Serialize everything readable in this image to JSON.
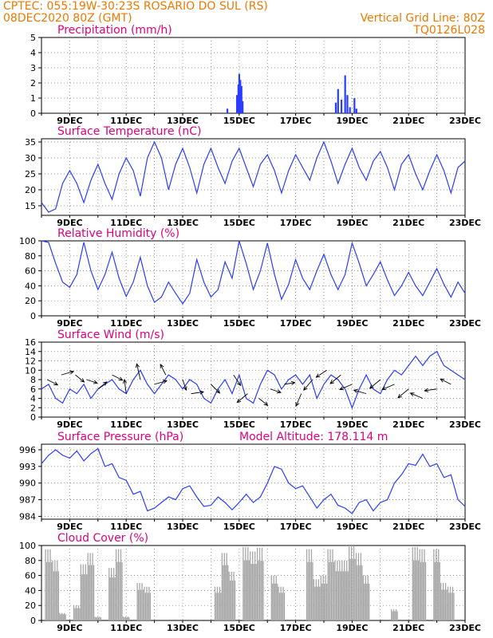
{
  "header": {
    "left_line1": "CPTEC:   055:19W-30:23S   ROSARIO DO SUL (RS)",
    "left_line2": "08DEC2020 80Z (GMT)",
    "right_line1": "Vertical Grid Line: 80Z",
    "right_line2": "TQ0126L028"
  },
  "x_axis": {
    "ticks": [
      "9DEC",
      "11DEC",
      "13DEC",
      "15DEC",
      "17DEC",
      "19DEC",
      "21DEC",
      "23DEC"
    ],
    "tick_days": [
      9,
      11,
      13,
      15,
      17,
      19,
      21,
      23
    ],
    "range_days": [
      8,
      23
    ]
  },
  "colors": {
    "line": "#2a3cff",
    "bar": "#a8a8a8",
    "title": "#e0007a",
    "header": "#f07800"
  },
  "chart_data": [
    {
      "type": "bar",
      "title": "Precipitation (mm/h)",
      "ylim": [
        0,
        5
      ],
      "yticks": [
        0,
        1,
        2,
        3,
        4,
        5
      ],
      "grid": true,
      "points": [
        [
          14.58,
          0.3
        ],
        [
          14.92,
          1.2
        ],
        [
          14.97,
          1.9
        ],
        [
          15.0,
          2.6
        ],
        [
          15.04,
          2.2
        ],
        [
          15.08,
          1.8
        ],
        [
          15.12,
          0.8
        ],
        [
          18.42,
          0.7
        ],
        [
          18.5,
          1.6
        ],
        [
          18.62,
          0.9
        ],
        [
          18.75,
          2.5
        ],
        [
          18.83,
          1.2
        ],
        [
          18.92,
          0.4
        ],
        [
          19.08,
          1.0
        ],
        [
          19.15,
          0.3
        ]
      ]
    },
    {
      "type": "line",
      "title": "Surface Temperature (nC)",
      "ylim": [
        12,
        36
      ],
      "yticks": [
        15,
        20,
        25,
        30,
        35
      ],
      "grid": true,
      "x": [
        8.0,
        8.25,
        8.5,
        8.75,
        9.0,
        9.25,
        9.5,
        9.75,
        10.0,
        10.25,
        10.5,
        10.75,
        11.0,
        11.25,
        11.5,
        11.75,
        12.0,
        12.25,
        12.5,
        12.75,
        13.0,
        13.25,
        13.5,
        13.75,
        14.0,
        14.25,
        14.5,
        14.75,
        15.0,
        15.25,
        15.5,
        15.75,
        16.0,
        16.25,
        16.5,
        16.75,
        17.0,
        17.25,
        17.5,
        17.75,
        18.0,
        18.25,
        18.5,
        18.75,
        19.0,
        19.25,
        19.5,
        19.75,
        20.0,
        20.25,
        20.5,
        20.75,
        21.0,
        21.25,
        21.5,
        21.75,
        22.0,
        22.25,
        22.5,
        22.75,
        23.0
      ],
      "y": [
        16,
        13,
        14,
        22,
        26,
        22,
        16,
        23,
        28,
        22,
        17,
        25,
        30,
        26,
        18,
        30,
        35,
        30,
        20,
        28,
        33,
        27,
        19,
        28,
        33,
        27,
        22,
        29,
        33,
        27,
        21,
        28,
        31,
        26,
        19,
        26,
        31,
        27,
        23,
        30,
        35,
        29,
        22,
        28,
        33,
        27,
        23,
        29,
        32,
        27,
        20,
        28,
        31,
        25,
        20,
        26,
        31,
        26,
        19,
        27,
        29
      ]
    },
    {
      "type": "line",
      "title": "Relative Humidity (%)",
      "ylim": [
        0,
        100
      ],
      "yticks": [
        0,
        20,
        40,
        60,
        80,
        100
      ],
      "grid": true,
      "x": [
        8.0,
        8.25,
        8.5,
        8.75,
        9.0,
        9.25,
        9.5,
        9.75,
        10.0,
        10.25,
        10.5,
        10.75,
        11.0,
        11.25,
        11.5,
        11.75,
        12.0,
        12.25,
        12.5,
        12.75,
        13.0,
        13.25,
        13.5,
        13.75,
        14.0,
        14.25,
        14.5,
        14.75,
        15.0,
        15.25,
        15.5,
        15.75,
        16.0,
        16.25,
        16.5,
        16.75,
        17.0,
        17.25,
        17.5,
        17.75,
        18.0,
        18.25,
        18.5,
        18.75,
        19.0,
        19.25,
        19.5,
        19.75,
        20.0,
        20.25,
        20.5,
        20.75,
        21.0,
        21.25,
        21.5,
        21.75,
        22.0,
        22.25,
        22.5,
        22.75,
        23.0
      ],
      "y": [
        100,
        98,
        70,
        45,
        38,
        55,
        98,
        60,
        35,
        55,
        85,
        50,
        26,
        45,
        78,
        40,
        18,
        25,
        45,
        30,
        16,
        30,
        75,
        45,
        25,
        35,
        72,
        50,
        100,
        70,
        35,
        60,
        97,
        55,
        22,
        42,
        75,
        50,
        35,
        60,
        82,
        55,
        35,
        55,
        97,
        70,
        40,
        55,
        72,
        48,
        27,
        40,
        58,
        40,
        27,
        45,
        63,
        42,
        25,
        45,
        30
      ]
    },
    {
      "type": "line",
      "title": "Surface Wind (m/s)",
      "ylim": [
        0,
        16
      ],
      "yticks": [
        0,
        2,
        4,
        6,
        8,
        10,
        12,
        14,
        16
      ],
      "grid": true,
      "x": [
        8.0,
        8.25,
        8.5,
        8.75,
        9.0,
        9.25,
        9.5,
        9.75,
        10.0,
        10.25,
        10.5,
        10.75,
        11.0,
        11.25,
        11.5,
        11.75,
        12.0,
        12.25,
        12.5,
        12.75,
        13.0,
        13.25,
        13.5,
        13.75,
        14.0,
        14.25,
        14.5,
        14.75,
        15.0,
        15.25,
        15.5,
        15.75,
        16.0,
        16.25,
        16.5,
        16.75,
        17.0,
        17.25,
        17.5,
        17.75,
        18.0,
        18.25,
        18.5,
        18.75,
        19.0,
        19.25,
        19.5,
        19.75,
        20.0,
        20.25,
        20.5,
        20.75,
        21.0,
        21.25,
        21.5,
        21.75,
        22.0,
        22.25,
        22.5,
        22.75,
        23.0
      ],
      "y": [
        6,
        7,
        4,
        3,
        6,
        5,
        7,
        4,
        6,
        7,
        8,
        6,
        5,
        8,
        10,
        7,
        5,
        7,
        9,
        8,
        6,
        8,
        7,
        4,
        3,
        6,
        8,
        5,
        9,
        4,
        3,
        7,
        10,
        9,
        6,
        8,
        9,
        7,
        9,
        4,
        7,
        9,
        8,
        6,
        2,
        6,
        9,
        6,
        5,
        8,
        10,
        9,
        11,
        13,
        11,
        13,
        14,
        11,
        10,
        9,
        8
      ],
      "arrows": [
        [
          8.2,
          8,
          0.6,
          -0.3
        ],
        [
          8.7,
          9,
          0.7,
          0.2
        ],
        [
          9.2,
          9,
          0.5,
          -0.4
        ],
        [
          9.6,
          8,
          0.6,
          -0.2
        ],
        [
          10.0,
          6,
          0.5,
          0.4
        ],
        [
          10.5,
          9,
          0.6,
          -0.3
        ],
        [
          11.0,
          5,
          -0.1,
          0.8
        ],
        [
          11.5,
          8,
          -0.2,
          0.9
        ],
        [
          12.0,
          7,
          0.7,
          0.2
        ],
        [
          12.4,
          9,
          -0.3,
          0.6
        ],
        [
          13.0,
          8,
          0.2,
          -0.6
        ],
        [
          13.3,
          5,
          0.7,
          0.1
        ],
        [
          14.0,
          7,
          0.5,
          -0.5
        ],
        [
          14.8,
          9,
          0.4,
          -0.6
        ],
        [
          15.3,
          5,
          -0.6,
          -0.5
        ],
        [
          15.7,
          4,
          0.5,
          -0.4
        ],
        [
          16.1,
          6,
          0.6,
          -0.2
        ],
        [
          16.6,
          7,
          0.6,
          0.1
        ],
        [
          17.2,
          5,
          -0.3,
          -0.7
        ],
        [
          17.6,
          8,
          -0.5,
          -0.6
        ],
        [
          18.1,
          10,
          -0.6,
          -0.4
        ],
        [
          18.6,
          9,
          -0.6,
          -0.5
        ],
        [
          19.0,
          7,
          -0.7,
          -0.3
        ],
        [
          19.5,
          5,
          -0.7,
          0.2
        ],
        [
          20.0,
          8,
          -0.6,
          -0.5
        ],
        [
          20.5,
          7,
          -0.7,
          -0.3
        ],
        [
          21.0,
          6,
          -0.6,
          -0.5
        ],
        [
          21.5,
          4,
          -0.7,
          0.3
        ],
        [
          22.0,
          6,
          -0.7,
          -0.1
        ],
        [
          22.5,
          7,
          -0.6,
          0.3
        ]
      ]
    },
    {
      "type": "line",
      "title": "Surface Pressure (hPa)",
      "annotation": "Model Altitude: 178.114 m",
      "ylim": [
        983.5,
        997
      ],
      "yticks": [
        984,
        987,
        990,
        993,
        996
      ],
      "ytick_labels": [
        "984",
        "987",
        "990",
        "993",
        "996"
      ],
      "grid": true,
      "x": [
        8.0,
        8.25,
        8.5,
        8.75,
        9.0,
        9.25,
        9.5,
        9.75,
        10.0,
        10.25,
        10.5,
        10.75,
        11.0,
        11.25,
        11.5,
        11.75,
        12.0,
        12.25,
        12.5,
        12.75,
        13.0,
        13.25,
        13.5,
        13.75,
        14.0,
        14.25,
        14.5,
        14.75,
        15.0,
        15.25,
        15.5,
        15.75,
        16.0,
        16.25,
        16.5,
        16.75,
        17.0,
        17.25,
        17.5,
        17.75,
        18.0,
        18.25,
        18.5,
        18.75,
        19.0,
        19.25,
        19.5,
        19.75,
        20.0,
        20.25,
        20.5,
        20.75,
        21.0,
        21.25,
        21.5,
        21.75,
        22.0,
        22.25,
        22.5,
        22.75,
        23.0
      ],
      "y": [
        993.5,
        995,
        996,
        995,
        994.5,
        995.8,
        994,
        995.3,
        996.2,
        993,
        993.5,
        991,
        990.5,
        988,
        988.5,
        985,
        985.5,
        986.5,
        987.5,
        987,
        989,
        989.5,
        987.5,
        985.8,
        986,
        987.5,
        986.5,
        985.2,
        986.5,
        988,
        986.5,
        987.5,
        990,
        993,
        992.5,
        990,
        989,
        989.5,
        987.5,
        985.5,
        987,
        988,
        986,
        985.5,
        984.5,
        986.5,
        987,
        985,
        986.5,
        987,
        990,
        991.5,
        993.5,
        993.2,
        995.2,
        993,
        993.5,
        991,
        991.5,
        987,
        985.8
      ]
    },
    {
      "type": "bar",
      "title": "Cloud Cover (%)",
      "ylim": [
        0,
        100
      ],
      "yticks": [
        0,
        20,
        40,
        60,
        80,
        100
      ],
      "grid": true,
      "x": [
        8.0,
        8.25,
        8.5,
        8.75,
        9.0,
        9.25,
        9.5,
        9.75,
        10.0,
        10.25,
        10.5,
        10.75,
        11.0,
        11.25,
        11.5,
        11.75,
        12.0,
        12.25,
        12.5,
        12.75,
        13.0,
        13.25,
        13.5,
        13.75,
        14.0,
        14.25,
        14.5,
        14.75,
        15.0,
        15.25,
        15.5,
        15.75,
        16.0,
        16.25,
        16.5,
        16.75,
        17.0,
        17.25,
        17.5,
        17.75,
        18.0,
        18.25,
        18.5,
        18.75,
        19.0,
        19.25,
        19.5,
        19.75,
        20.0,
        20.25,
        20.5,
        20.75,
        21.0,
        21.25,
        21.5,
        21.75,
        22.0,
        22.25,
        22.5,
        22.75,
        23.0
      ],
      "y": [
        0,
        95,
        80,
        10,
        0,
        20,
        75,
        90,
        5,
        0,
        70,
        95,
        5,
        0,
        50,
        45,
        0,
        0,
        0,
        0,
        0,
        0,
        0,
        0,
        0,
        45,
        90,
        65,
        0,
        98,
        92,
        97,
        0,
        60,
        45,
        0,
        0,
        0,
        95,
        55,
        60,
        95,
        80,
        80,
        100,
        90,
        60,
        0,
        0,
        0,
        15,
        0,
        0,
        98,
        95,
        0,
        95,
        50,
        45,
        0,
        0
      ]
    }
  ]
}
